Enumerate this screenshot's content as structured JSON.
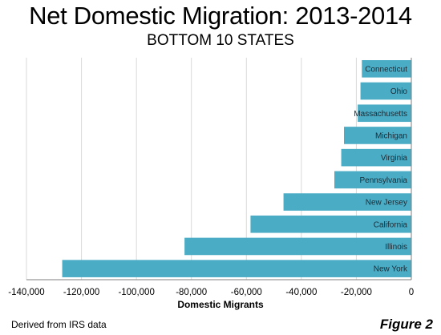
{
  "title": "Net Domestic Migration: 2013-2014",
  "subtitle": "BOTTOM 10 STATES",
  "source_note": "Derived from IRS  data",
  "figure_label": "Figure 2",
  "colors": {
    "bar": "#4bacc6",
    "grid": "#d9d9d9",
    "axis": "#7f7f7f"
  },
  "chart_data": {
    "type": "bar",
    "orientation": "horizontal",
    "title": "Net Domestic Migration: 2013-2014",
    "subtitle": "BOTTOM 10 STATES",
    "xlabel": "Domestic Migrants",
    "ylabel": "",
    "categories": [
      "Connecticut",
      "Ohio",
      "Massachusetts",
      "Michigan",
      "Virginia",
      "Pennsylvania",
      "New Jersey",
      "California",
      "Illinois",
      "New York"
    ],
    "values": [
      -18000,
      -18500,
      -19500,
      -24500,
      -25500,
      -28000,
      -46500,
      -58500,
      -82500,
      -127000
    ],
    "xlim": [
      -140000,
      0
    ],
    "xticks": [
      -140000,
      -120000,
      -100000,
      -80000,
      -60000,
      -40000,
      -20000,
      0
    ],
    "xtick_labels": [
      "-140,000",
      "-120,000",
      "-100,000",
      "-80,000",
      "-60,000",
      "-40,000",
      "-20,000",
      "0"
    ],
    "grid": true,
    "legend": "none"
  }
}
